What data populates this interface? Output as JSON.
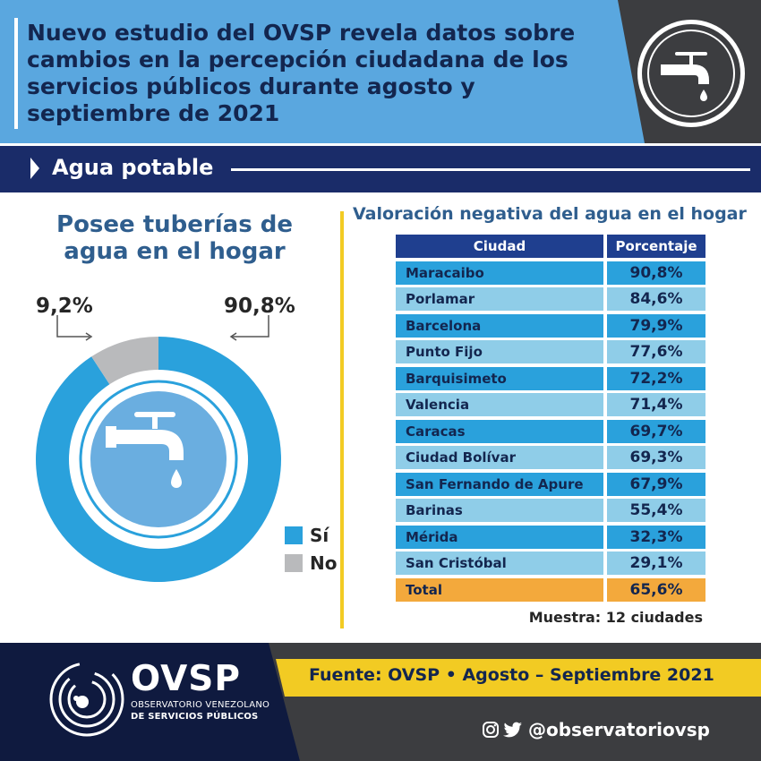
{
  "header": {
    "title": "Nuevo estudio del OVSP revela datos sobre cambios en la percepción ciudadana de los servicios públicos durante agosto y septiembre de 2021"
  },
  "section": {
    "title": "Agua potable"
  },
  "donut": {
    "title_line1": "Posee tuberías de",
    "title_line2": "agua en el hogar",
    "label_no": "9,2%",
    "label_si": "90,8%",
    "legend": [
      {
        "label": "Sí",
        "color": "#2aa1dc"
      },
      {
        "label": "No",
        "color": "#b9babc"
      }
    ]
  },
  "table": {
    "title": "Valoración negativa del agua en el hogar",
    "headers": {
      "city": "Ciudad",
      "pct": "Porcentaje"
    },
    "sample_note": "Muestra: 12 ciudades"
  },
  "footer": {
    "source": "Fuente: OVSP • Agosto – Septiembre 2021",
    "logo": "OVSP",
    "logo_sub1": "OBSERVATORIO VENEZOLANO",
    "logo_sub2": "DE SERVICIOS PÚBLICOS",
    "handle": "@observatoriovsp"
  },
  "colors": {
    "si": "#2aa1dc",
    "no": "#b9babc",
    "row_dark": "#2aa1dc",
    "row_light": "#8fcde8",
    "total": "#f3a93c",
    "header_navy": "#1f3f8f"
  },
  "chart_data": [
    {
      "type": "pie",
      "title": "Posee tuberías de agua en el hogar",
      "categories": [
        "Sí",
        "No"
      ],
      "values": [
        90.8,
        9.2
      ],
      "value_labels": [
        "90,8%",
        "9,2%"
      ],
      "legend": "right"
    },
    {
      "type": "table",
      "title": "Valoración negativa del agua en el hogar",
      "columns": [
        "Ciudad",
        "Porcentaje"
      ],
      "rows": [
        [
          "Maracaibo",
          "90,8%"
        ],
        [
          "Porlamar",
          "84,6%"
        ],
        [
          "Barcelona",
          "79,9%"
        ],
        [
          "Punto Fijo",
          "77,6%"
        ],
        [
          "Barquisimeto",
          "72,2%"
        ],
        [
          "Valencia",
          "71,4%"
        ],
        [
          "Caracas",
          "69,7%"
        ],
        [
          "Ciudad Bolívar",
          "69,3%"
        ],
        [
          "San Fernando de Apure",
          "67,9%"
        ],
        [
          "Barinas",
          "55,4%"
        ],
        [
          "Mérida",
          "32,3%"
        ],
        [
          "San Cristóbal",
          "29,1%"
        ]
      ],
      "total": [
        "Total",
        "65,6%"
      ]
    }
  ]
}
